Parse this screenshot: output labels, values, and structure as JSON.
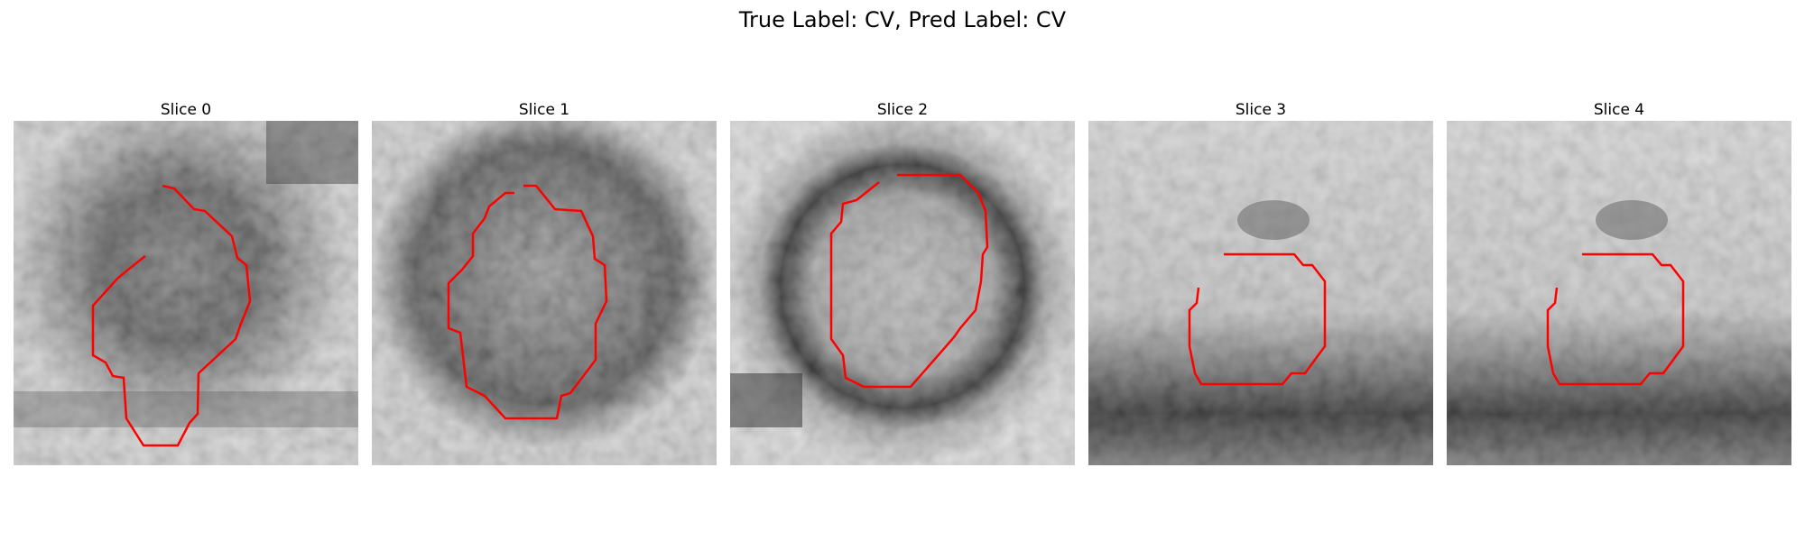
{
  "figure": {
    "title": "True Label: CV, Pred Label: CV"
  },
  "panels": [
    {
      "label": "Slice 0"
    },
    {
      "label": "Slice 1"
    },
    {
      "label": "Slice 2"
    },
    {
      "label": "Slice 3"
    },
    {
      "label": "Slice 4"
    }
  ],
  "colors": {
    "contour": "#ff0000"
  }
}
